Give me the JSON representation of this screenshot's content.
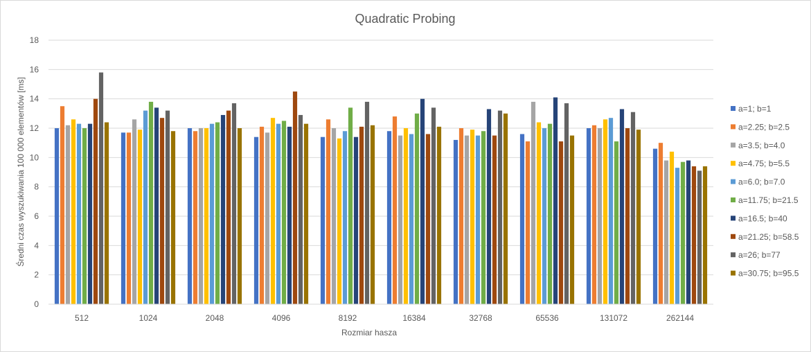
{
  "chart_data": {
    "type": "bar",
    "title": "Quadratic Probing",
    "xlabel": "Rozmiar hasza",
    "ylabel": "Średni czas wyszukiwania 100 000 elementów [ms]",
    "ylim": [
      0,
      18
    ],
    "yticks": [
      0,
      2,
      4,
      6,
      8,
      10,
      12,
      14,
      16,
      18
    ],
    "grid": true,
    "legend_position": "right",
    "categories": [
      "512",
      "1024",
      "2048",
      "4096",
      "8192",
      "16384",
      "32768",
      "65536",
      "131072",
      "262144"
    ],
    "series": [
      {
        "name": "a=1; b=1",
        "color": "#4472c4",
        "values": [
          12.0,
          11.7,
          12.0,
          11.4,
          11.4,
          11.8,
          11.2,
          11.6,
          12.0,
          10.6
        ]
      },
      {
        "name": "a=2.25; b=2.5",
        "color": "#ed7d31",
        "values": [
          13.5,
          11.7,
          11.8,
          12.1,
          12.6,
          12.8,
          12.0,
          11.1,
          12.2,
          11.0
        ]
      },
      {
        "name": "a=3.5; b=4.0",
        "color": "#a5a5a5",
        "values": [
          12.2,
          12.6,
          12.0,
          11.7,
          12.0,
          11.5,
          11.5,
          13.8,
          12.0,
          9.8
        ]
      },
      {
        "name": "a=4.75; b=5.5",
        "color": "#ffc000",
        "values": [
          12.6,
          11.9,
          12.0,
          12.7,
          11.3,
          12.0,
          11.9,
          12.4,
          12.6,
          10.4
        ]
      },
      {
        "name": "a=6.0; b=7.0",
        "color": "#5b9bd5",
        "values": [
          12.3,
          13.2,
          12.3,
          12.3,
          11.8,
          11.6,
          11.5,
          12.0,
          12.7,
          9.3
        ]
      },
      {
        "name": "a=11.75; b=21.5",
        "color": "#70ad47",
        "values": [
          12.0,
          13.8,
          12.4,
          12.5,
          13.4,
          13.0,
          11.8,
          12.3,
          11.1,
          9.7
        ]
      },
      {
        "name": "a=16.5; b=40",
        "color": "#264478",
        "values": [
          12.3,
          13.4,
          12.9,
          12.1,
          11.4,
          14.0,
          13.3,
          14.1,
          13.3,
          9.8
        ]
      },
      {
        "name": "a=21.25; b=58.5",
        "color": "#9e480e",
        "values": [
          14.0,
          12.7,
          13.2,
          14.5,
          12.1,
          11.6,
          11.5,
          11.1,
          12.0,
          9.4
        ]
      },
      {
        "name": "a=26; b=77",
        "color": "#636363",
        "values": [
          15.8,
          13.2,
          13.7,
          12.9,
          13.8,
          13.4,
          13.2,
          13.7,
          13.1,
          9.1
        ]
      },
      {
        "name": "a=30.75; b=95.5",
        "color": "#997300",
        "values": [
          12.4,
          11.8,
          12.0,
          12.3,
          12.2,
          12.1,
          13.0,
          11.5,
          11.9,
          9.4
        ]
      }
    ]
  }
}
